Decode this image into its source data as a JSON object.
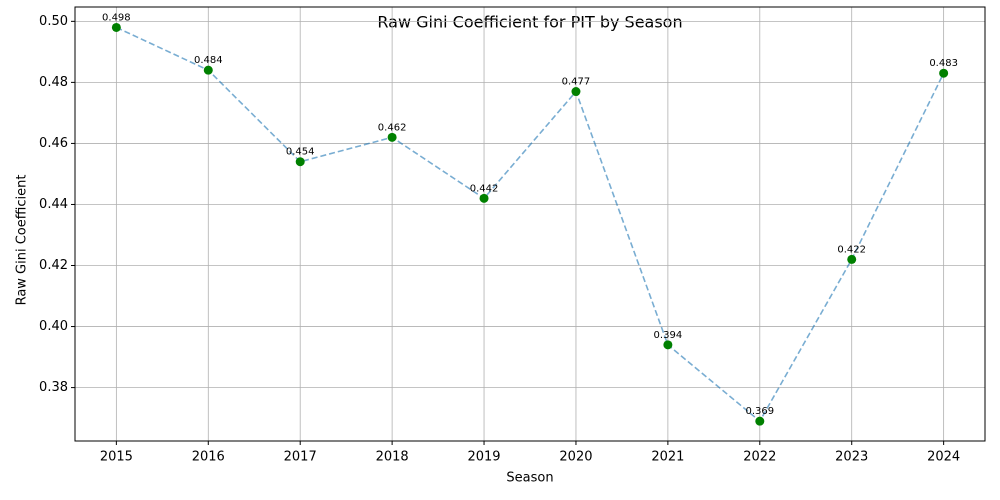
{
  "chart_data": {
    "type": "line",
    "title": "Raw Gini Coefficient for PIT by Season",
    "xlabel": "Season",
    "ylabel": "Raw Gini Coefficient",
    "x": [
      2015,
      2016,
      2017,
      2018,
      2019,
      2020,
      2021,
      2022,
      2023,
      2024
    ],
    "series": [
      {
        "values": [
          0.498,
          0.484,
          0.454,
          0.462,
          0.442,
          0.477,
          0.394,
          0.369,
          0.422,
          0.483
        ],
        "color": "#1f77b4",
        "marker_color": "#008000"
      }
    ],
    "xlim": [
      2014.55,
      2024.45
    ],
    "xticks": [
      2015,
      2016,
      2017,
      2018,
      2019,
      2020,
      2021,
      2022,
      2023,
      2024
    ],
    "ylim": [
      0.3625,
      0.5047
    ],
    "yticks": [
      0.38,
      {
        "value": 0.4,
        "label": "0.40"
      },
      0.42,
      0.44,
      0.46,
      0.48,
      {
        "value": 0.5,
        "label": "0.50"
      }
    ],
    "grid": true
  }
}
